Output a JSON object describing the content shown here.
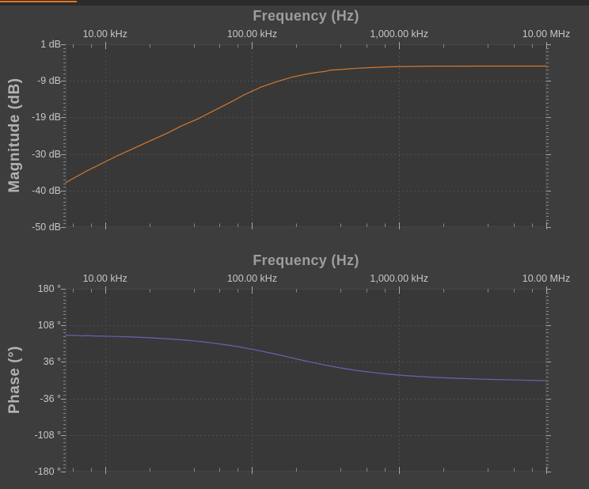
{
  "app": {
    "name": "bode-analyzer",
    "sweep_progress": {
      "fraction": 0.13,
      "bar_color": "#e2761d",
      "track_color": "#2b2b2b"
    }
  },
  "colors": {
    "background": "#3d3d3d",
    "plot_background": "#383838",
    "grid": "#4f4f4f",
    "tick_minor": "#868686",
    "tick_major": "#a5a5a5",
    "edge": "#454545",
    "label_text": "#c6c6c6",
    "title_text": "#9d9d9d",
    "axis_title_text": "#b2b2b2",
    "magnitude_trace": "#d4782e",
    "phase_trace": "#6d60b4"
  },
  "chart_data": [
    {
      "type": "line",
      "title": "Frequency (Hz)",
      "xlabel": "Frequency (Hz)",
      "ylabel": "Magnitude (dB)",
      "x_scale": "log",
      "x_range_hz": [
        5400,
        10000000
      ],
      "x_ticks": [
        {
          "hz": 10000,
          "label": "10.00 kHz"
        },
        {
          "hz": 100000,
          "label": "100.00 kHz"
        },
        {
          "hz": 1000000,
          "label": "1,000.00 kHz"
        },
        {
          "hz": 10000000,
          "label": "10.00 MHz"
        }
      ],
      "x_minor_tick_multiples": [
        2,
        4,
        6,
        8
      ],
      "ylim": [
        -50,
        1
      ],
      "y_ticks": [
        {
          "value": 1,
          "label": "1 dB"
        },
        {
          "value": -9.2,
          "label": "-9 dB"
        },
        {
          "value": -19.4,
          "label": "-19 dB"
        },
        {
          "value": -29.6,
          "label": "-30 dB"
        },
        {
          "value": -39.8,
          "label": "-40 dB"
        },
        {
          "value": -50,
          "label": "-50 dB"
        }
      ],
      "grid": true,
      "legend_position": "none",
      "series": [
        {
          "name": "magnitude",
          "color": "#d4782e",
          "points": [
            [
              5400,
              -37.6
            ],
            [
              6270,
              -36.1
            ],
            [
              7540,
              -34.3
            ],
            [
              9670,
              -32.1
            ],
            [
              12400,
              -29.9
            ],
            [
              15900,
              -27.9
            ],
            [
              20350,
              -25.9
            ],
            [
              26100,
              -23.9
            ],
            [
              33400,
              -21.7
            ],
            [
              42800,
              -19.8
            ],
            [
              54900,
              -17.5
            ],
            [
              70300,
              -15.3
            ],
            [
              90100,
              -12.9
            ],
            [
              115400,
              -10.9
            ],
            [
              147900,
              -9.4
            ],
            [
              189500,
              -8.1
            ],
            [
              242800,
              -7.2
            ],
            [
              280000,
              -6.8
            ],
            [
              311200,
              -6.6
            ],
            [
              340000,
              -6.2
            ],
            [
              398800,
              -6.05
            ],
            [
              511000,
              -5.7
            ],
            [
              654700,
              -5.5
            ],
            [
              838900,
              -5.3
            ],
            [
              1075000,
              -5.2
            ],
            [
              1560000,
              -5.1
            ],
            [
              2260000,
              -5.1
            ],
            [
              3720000,
              -5.07
            ],
            [
              6110000,
              -5.07
            ],
            [
              10000000,
              -5.07
            ]
          ]
        }
      ]
    },
    {
      "type": "line",
      "title": "Frequency (Hz)",
      "xlabel": "Frequency (Hz)",
      "ylabel": "Phase (°)",
      "x_scale": "log",
      "x_range_hz": [
        5400,
        10000000
      ],
      "x_ticks": [
        {
          "hz": 10000,
          "label": "10.00 kHz"
        },
        {
          "hz": 100000,
          "label": "100.00 kHz"
        },
        {
          "hz": 1000000,
          "label": "1,000.00 kHz"
        },
        {
          "hz": 10000000,
          "label": "10.00 MHz"
        }
      ],
      "x_minor_tick_multiples": [
        2,
        4,
        6,
        8
      ],
      "ylim": [
        -180,
        180
      ],
      "y_ticks": [
        {
          "value": 180,
          "label": "180 °"
        },
        {
          "value": 108,
          "label": "108 °"
        },
        {
          "value": 36,
          "label": "36 °"
        },
        {
          "value": -36,
          "label": "-36 °"
        },
        {
          "value": -108,
          "label": "-108 °"
        },
        {
          "value": -180,
          "label": "-180 °"
        }
      ],
      "grid": true,
      "legend_position": "none",
      "series": [
        {
          "name": "phase",
          "color": "#6d60b4",
          "points": [
            [
              5400,
              88.2
            ],
            [
              6270,
              88.4
            ],
            [
              7000,
              87.2
            ],
            [
              7540,
              88.0
            ],
            [
              8500,
              87.0
            ],
            [
              9670,
              86.8
            ],
            [
              12400,
              86.0
            ],
            [
              15900,
              84.9
            ],
            [
              20350,
              83.5
            ],
            [
              26100,
              81.7
            ],
            [
              33400,
              79.5
            ],
            [
              42800,
              76.6
            ],
            [
              54900,
              73.0
            ],
            [
              70300,
              68.7
            ],
            [
              90100,
              63.4
            ],
            [
              115400,
              57.3
            ],
            [
              147900,
              50.6
            ],
            [
              189500,
              43.5
            ],
            [
              242800,
              36.5
            ],
            [
              311200,
              29.9
            ],
            [
              398800,
              24.2
            ],
            [
              511000,
              19.3
            ],
            [
              654700,
              15.3
            ],
            [
              838900,
              11.9
            ],
            [
              1075000,
              9.3
            ],
            [
              1560000,
              6.3
            ],
            [
              2260000,
              4.1
            ],
            [
              3720000,
              2.0
            ],
            [
              6110000,
              0.5
            ],
            [
              10000000,
              -1.0
            ]
          ]
        }
      ]
    }
  ]
}
